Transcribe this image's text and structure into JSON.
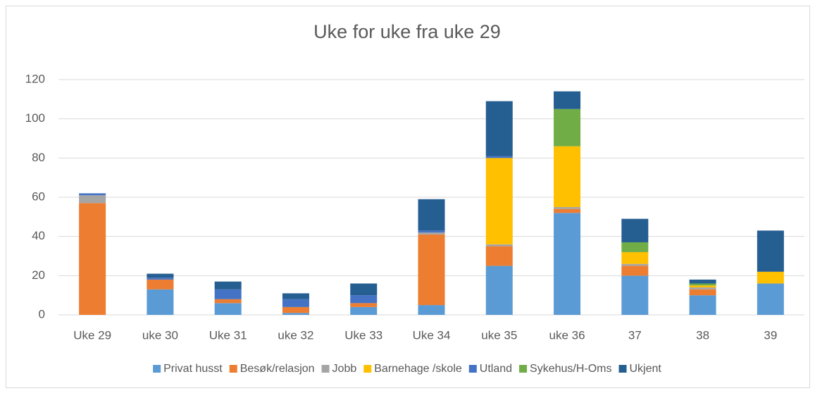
{
  "chart_data": {
    "type": "stacked_bar",
    "title": "Uke for uke fra uke 29",
    "categories": [
      "Uke 29",
      "uke 30",
      "Uke 31",
      "uke 32",
      "Uke 33",
      "Uke 34",
      "uke 35",
      "uke 36",
      "37",
      "38",
      "39"
    ],
    "series": [
      {
        "name": "Privat husst",
        "color": "#5b9bd5",
        "values": [
          0,
          13,
          6,
          1,
          4,
          5,
          25,
          52,
          20,
          10,
          16
        ]
      },
      {
        "name": "Besøk/relasjon",
        "color": "#ed7d31",
        "values": [
          57,
          5,
          2,
          3,
          2,
          36,
          10,
          2,
          5,
          3,
          0
        ]
      },
      {
        "name": "Jobb",
        "color": "#a5a5a5",
        "values": [
          4,
          0,
          0,
          0,
          0,
          1,
          1,
          1,
          1,
          1,
          0
        ]
      },
      {
        "name": "Barnehage /skole",
        "color": "#ffc000",
        "values": [
          0,
          0,
          0,
          0,
          0,
          0,
          44,
          31,
          6,
          1,
          6
        ]
      },
      {
        "name": "Utland",
        "color": "#4472c4",
        "values": [
          1,
          1,
          5,
          4,
          4,
          1,
          1,
          0,
          0,
          0,
          0
        ]
      },
      {
        "name": "Sykehus/H-Oms",
        "color": "#70ad47",
        "values": [
          0,
          0,
          0,
          0,
          0,
          0,
          0,
          19,
          5,
          1,
          0
        ]
      },
      {
        "name": "Ukjent",
        "color": "#255e91",
        "values": [
          0,
          2,
          4,
          3,
          6,
          16,
          28,
          9,
          12,
          2,
          21
        ]
      }
    ],
    "ylim": [
      0,
      120
    ],
    "yticks": [
      0,
      20,
      40,
      60,
      80,
      100,
      120
    ],
    "grid": true,
    "legend": "bottom"
  }
}
